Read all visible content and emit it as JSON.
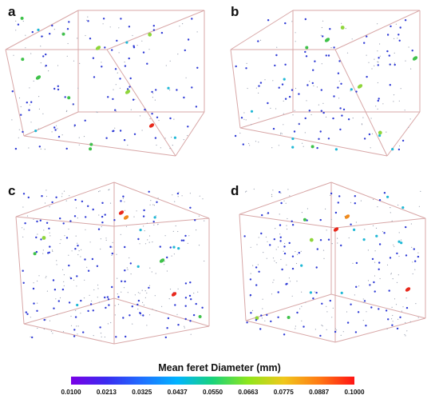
{
  "panels": [
    {
      "label": "a",
      "id": "a"
    },
    {
      "label": "b",
      "id": "b"
    },
    {
      "label": "c",
      "id": "c"
    },
    {
      "label": "d",
      "id": "d"
    }
  ],
  "colorbar": {
    "title": "Mean feret Diameter (mm)",
    "ticks": [
      "0.0100",
      "0.0213",
      "0.0325",
      "0.0437",
      "0.0550",
      "0.0663",
      "0.0775",
      "0.0887",
      "0.1000"
    ],
    "min": 0.01,
    "max": 0.1,
    "colors": [
      "#7a00e6",
      "#3a2bf0",
      "#1f6fff",
      "#00b4ff",
      "#19d37a",
      "#8fe61c",
      "#f0c81c",
      "#ff7a14",
      "#ff1414"
    ]
  },
  "box_edge_color": "#d8a7a7",
  "pore_colors": {
    "small": "#2f3bd6",
    "cyan": "#1fb8d6",
    "green": "#3fc24a",
    "lime": "#8fd63a",
    "orange": "#f08a1c",
    "red": "#e8291c"
  }
}
